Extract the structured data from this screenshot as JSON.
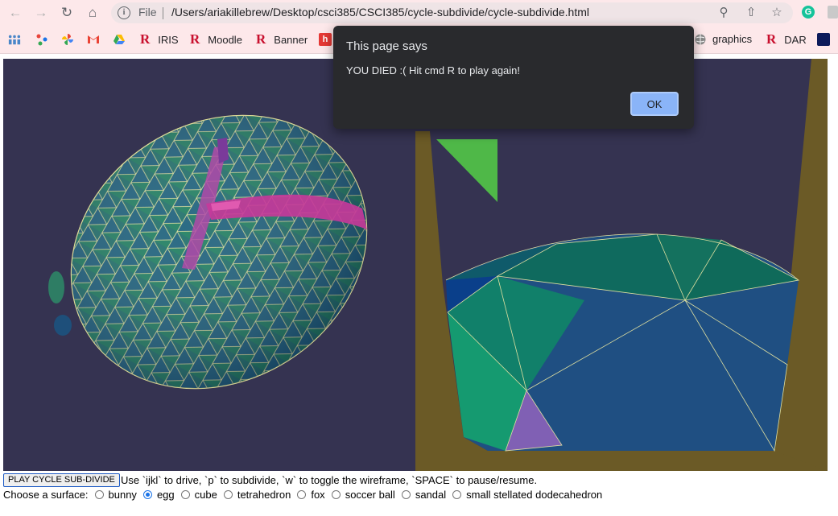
{
  "browser": {
    "omnibox_scheme": "File",
    "url": "/Users/ariakillebrew/Desktop/csci385/CSCI385/cycle-subdivide/cycle-subdivide.html",
    "nav": {
      "back": "back-arrow-icon",
      "forward": "forward-arrow-icon",
      "reload": "reload-icon",
      "home": "home-icon"
    },
    "bookmarks": [
      {
        "icon": "apps-icon",
        "label": ""
      },
      {
        "icon": "share-icon",
        "label": ""
      },
      {
        "icon": "photos-icon",
        "label": ""
      },
      {
        "icon": "gmail-icon",
        "label": ""
      },
      {
        "icon": "drive-icon",
        "label": ""
      },
      {
        "icon": "reed-r-icon",
        "label": "IRIS"
      },
      {
        "icon": "reed-r-icon",
        "label": "Moodle"
      },
      {
        "icon": "reed-r-icon",
        "label": "Banner"
      },
      {
        "icon": "handshake-icon",
        "label": ""
      },
      {
        "icon": "globe-icon",
        "label": "graphics"
      },
      {
        "icon": "reed-r-icon",
        "label": "DAR"
      },
      {
        "icon": "tab-icon",
        "label": ""
      }
    ]
  },
  "dialog": {
    "title": "This page says",
    "message": "YOU DIED :( Hit cmd R to play again!",
    "ok_label": "OK"
  },
  "controls": {
    "play_button": "PLAY CYCLE SUB-DIVIDE",
    "instructions": "Use `ijkl` to drive, `p` to subdivide, `w` to toggle the wireframe, `SPACE` to pause/resume.",
    "surface_prompt": "Choose a surface:",
    "surfaces": [
      {
        "label": "bunny",
        "selected": false
      },
      {
        "label": "egg",
        "selected": true
      },
      {
        "label": "cube",
        "selected": false
      },
      {
        "label": "tetrahedron",
        "selected": false
      },
      {
        "label": "fox",
        "selected": false
      },
      {
        "label": "soccer ball",
        "selected": false
      },
      {
        "label": "sandal",
        "selected": false
      },
      {
        "label": "small stellated dodecahedron",
        "selected": false
      }
    ]
  },
  "colors": {
    "canvas_bg": "#353351",
    "egg_green": "#1a7a6a",
    "egg_blue": "#1f4f8a",
    "trail_magenta": "#c0389a",
    "wireframe": "#e8e79a",
    "wall_olive": "#6b5a26",
    "pointer_green": "#4fb848",
    "ok_button": "#8ab4f8"
  }
}
